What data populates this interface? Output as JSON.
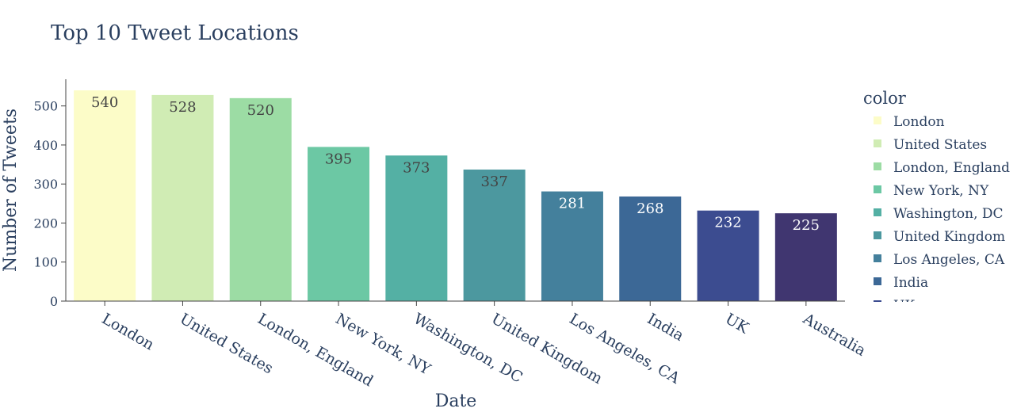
{
  "chart_data": {
    "type": "bar",
    "title": "Top 10 Tweet Locations",
    "xlabel": "Date",
    "ylabel": "Number of Tweets",
    "categories": [
      "London",
      "United States",
      "London, England",
      "New York, NY",
      "Washington, DC",
      "United Kingdom",
      "Los Angeles, CA",
      "India",
      "UK",
      "Australia"
    ],
    "values": [
      540,
      528,
      520,
      395,
      373,
      337,
      281,
      268,
      232,
      225
    ],
    "colors": [
      "#fcfcc8",
      "#d0ecb4",
      "#9cdca4",
      "#6cc8a4",
      "#54b0a4",
      "#4c989f",
      "#44809c",
      "#3c6896",
      "#3c4c90",
      "#403670"
    ],
    "label_colors": [
      "#444444",
      "#444444",
      "#444444",
      "#444444",
      "#444444",
      "#444444",
      "#ffffff",
      "#ffffff",
      "#ffffff",
      "#ffffff"
    ],
    "ylim": [
      0,
      567
    ],
    "yticks": [
      0,
      100,
      200,
      300,
      400,
      500
    ],
    "grid": false,
    "legend": {
      "title": "color",
      "position": "right",
      "entries": [
        "London",
        "United States",
        "London, England",
        "New York, NY",
        "Washington, DC",
        "United Kingdom",
        "Los Angeles, CA",
        "India"
      ],
      "clipped_entry": "UK"
    }
  }
}
